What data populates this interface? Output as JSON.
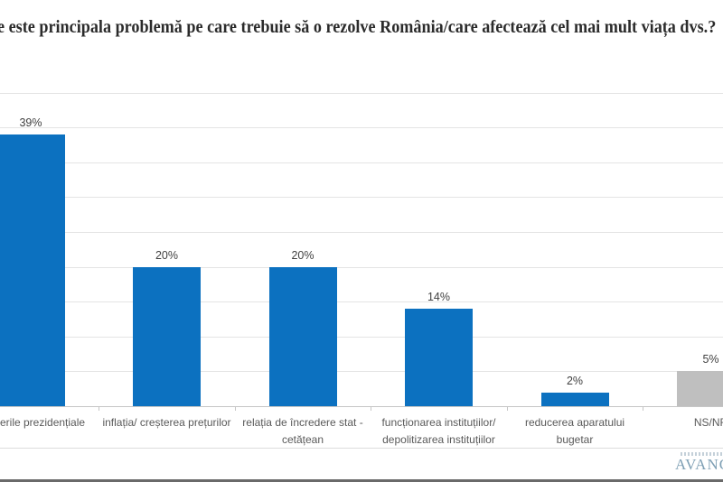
{
  "title": "e este principala problemă pe care trebuie să o rezolve România/care afectează cel mai mult viața dvs.?",
  "chart_data": {
    "type": "bar",
    "title": "e este principala problemă pe care trebuie să o rezolve România/care afectează cel mai mult viața dvs.?",
    "categories": [
      "erile  prezidențiale",
      "inflația/ creșterea prețurilor",
      "relația de încredere stat - cetățean",
      "funcționarea instituțiilor/ depolitizarea instituțiilor",
      "reducerea aparatului bugetar",
      "NS/NR"
    ],
    "values": [
      39,
      20,
      20,
      14,
      2,
      5
    ],
    "value_labels": [
      "39%",
      "20%",
      "20%",
      "14%",
      "2%",
      "5%"
    ],
    "bar_colors": [
      "#0c71c0",
      "#0c71c0",
      "#0c71c0",
      "#0c71c0",
      "#0c71c0",
      "#bfbfbf"
    ],
    "xlabel": "",
    "ylabel": "",
    "ylim": [
      0,
      45
    ],
    "gridline_step": 5,
    "grid": true,
    "legend_position": "none"
  },
  "colors": {
    "bar_blue": "#0c71c0",
    "bar_gray": "#bfbfbf",
    "gridline": "#e4e4e4",
    "axis_line": "#c6c6c6",
    "title_text": "#2b2b2b",
    "value_label_text": "#404040",
    "category_label_text": "#595959",
    "logo_text": "#7fa0b5"
  },
  "logo": {
    "text": "AVANG"
  }
}
